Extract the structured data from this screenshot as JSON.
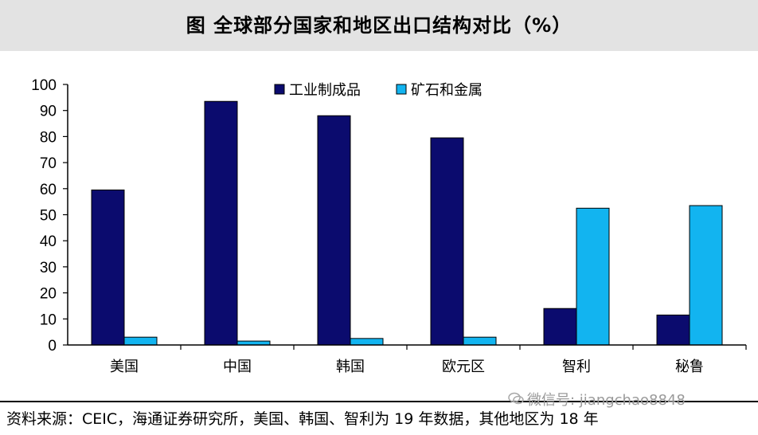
{
  "header": {
    "title": "图  全球部分国家和地区出口结构对比（%）"
  },
  "footer": {
    "source": "资料来源：CEIC，海通证券研究所，美国、韩国、智利为 19 年数据，其他地区为 18 年",
    "watermark": "微信号: jiangchao8848",
    "watermark_icon": "wechat-icon"
  },
  "colors": {
    "manufactured": "#0b0b6e",
    "ores_metals": "#12b4f0"
  },
  "chart_data": {
    "type": "bar",
    "categories": [
      "美国",
      "中国",
      "韩国",
      "欧元区",
      "智利",
      "秘鲁"
    ],
    "series": [
      {
        "name": "工业制成品",
        "values": [
          59.5,
          93.5,
          88,
          79.5,
          14,
          11.5
        ]
      },
      {
        "name": "矿石和金属",
        "values": [
          3,
          1.5,
          2.5,
          3,
          52.5,
          53.5
        ]
      }
    ],
    "ylim": [
      0,
      100
    ],
    "yticks": [
      "0",
      "10",
      "20",
      "30",
      "40",
      "50",
      "60",
      "70",
      "80",
      "90",
      "100"
    ],
    "legend_position": "top",
    "grid": false,
    "title": "",
    "xlabel": "",
    "ylabel": ""
  }
}
